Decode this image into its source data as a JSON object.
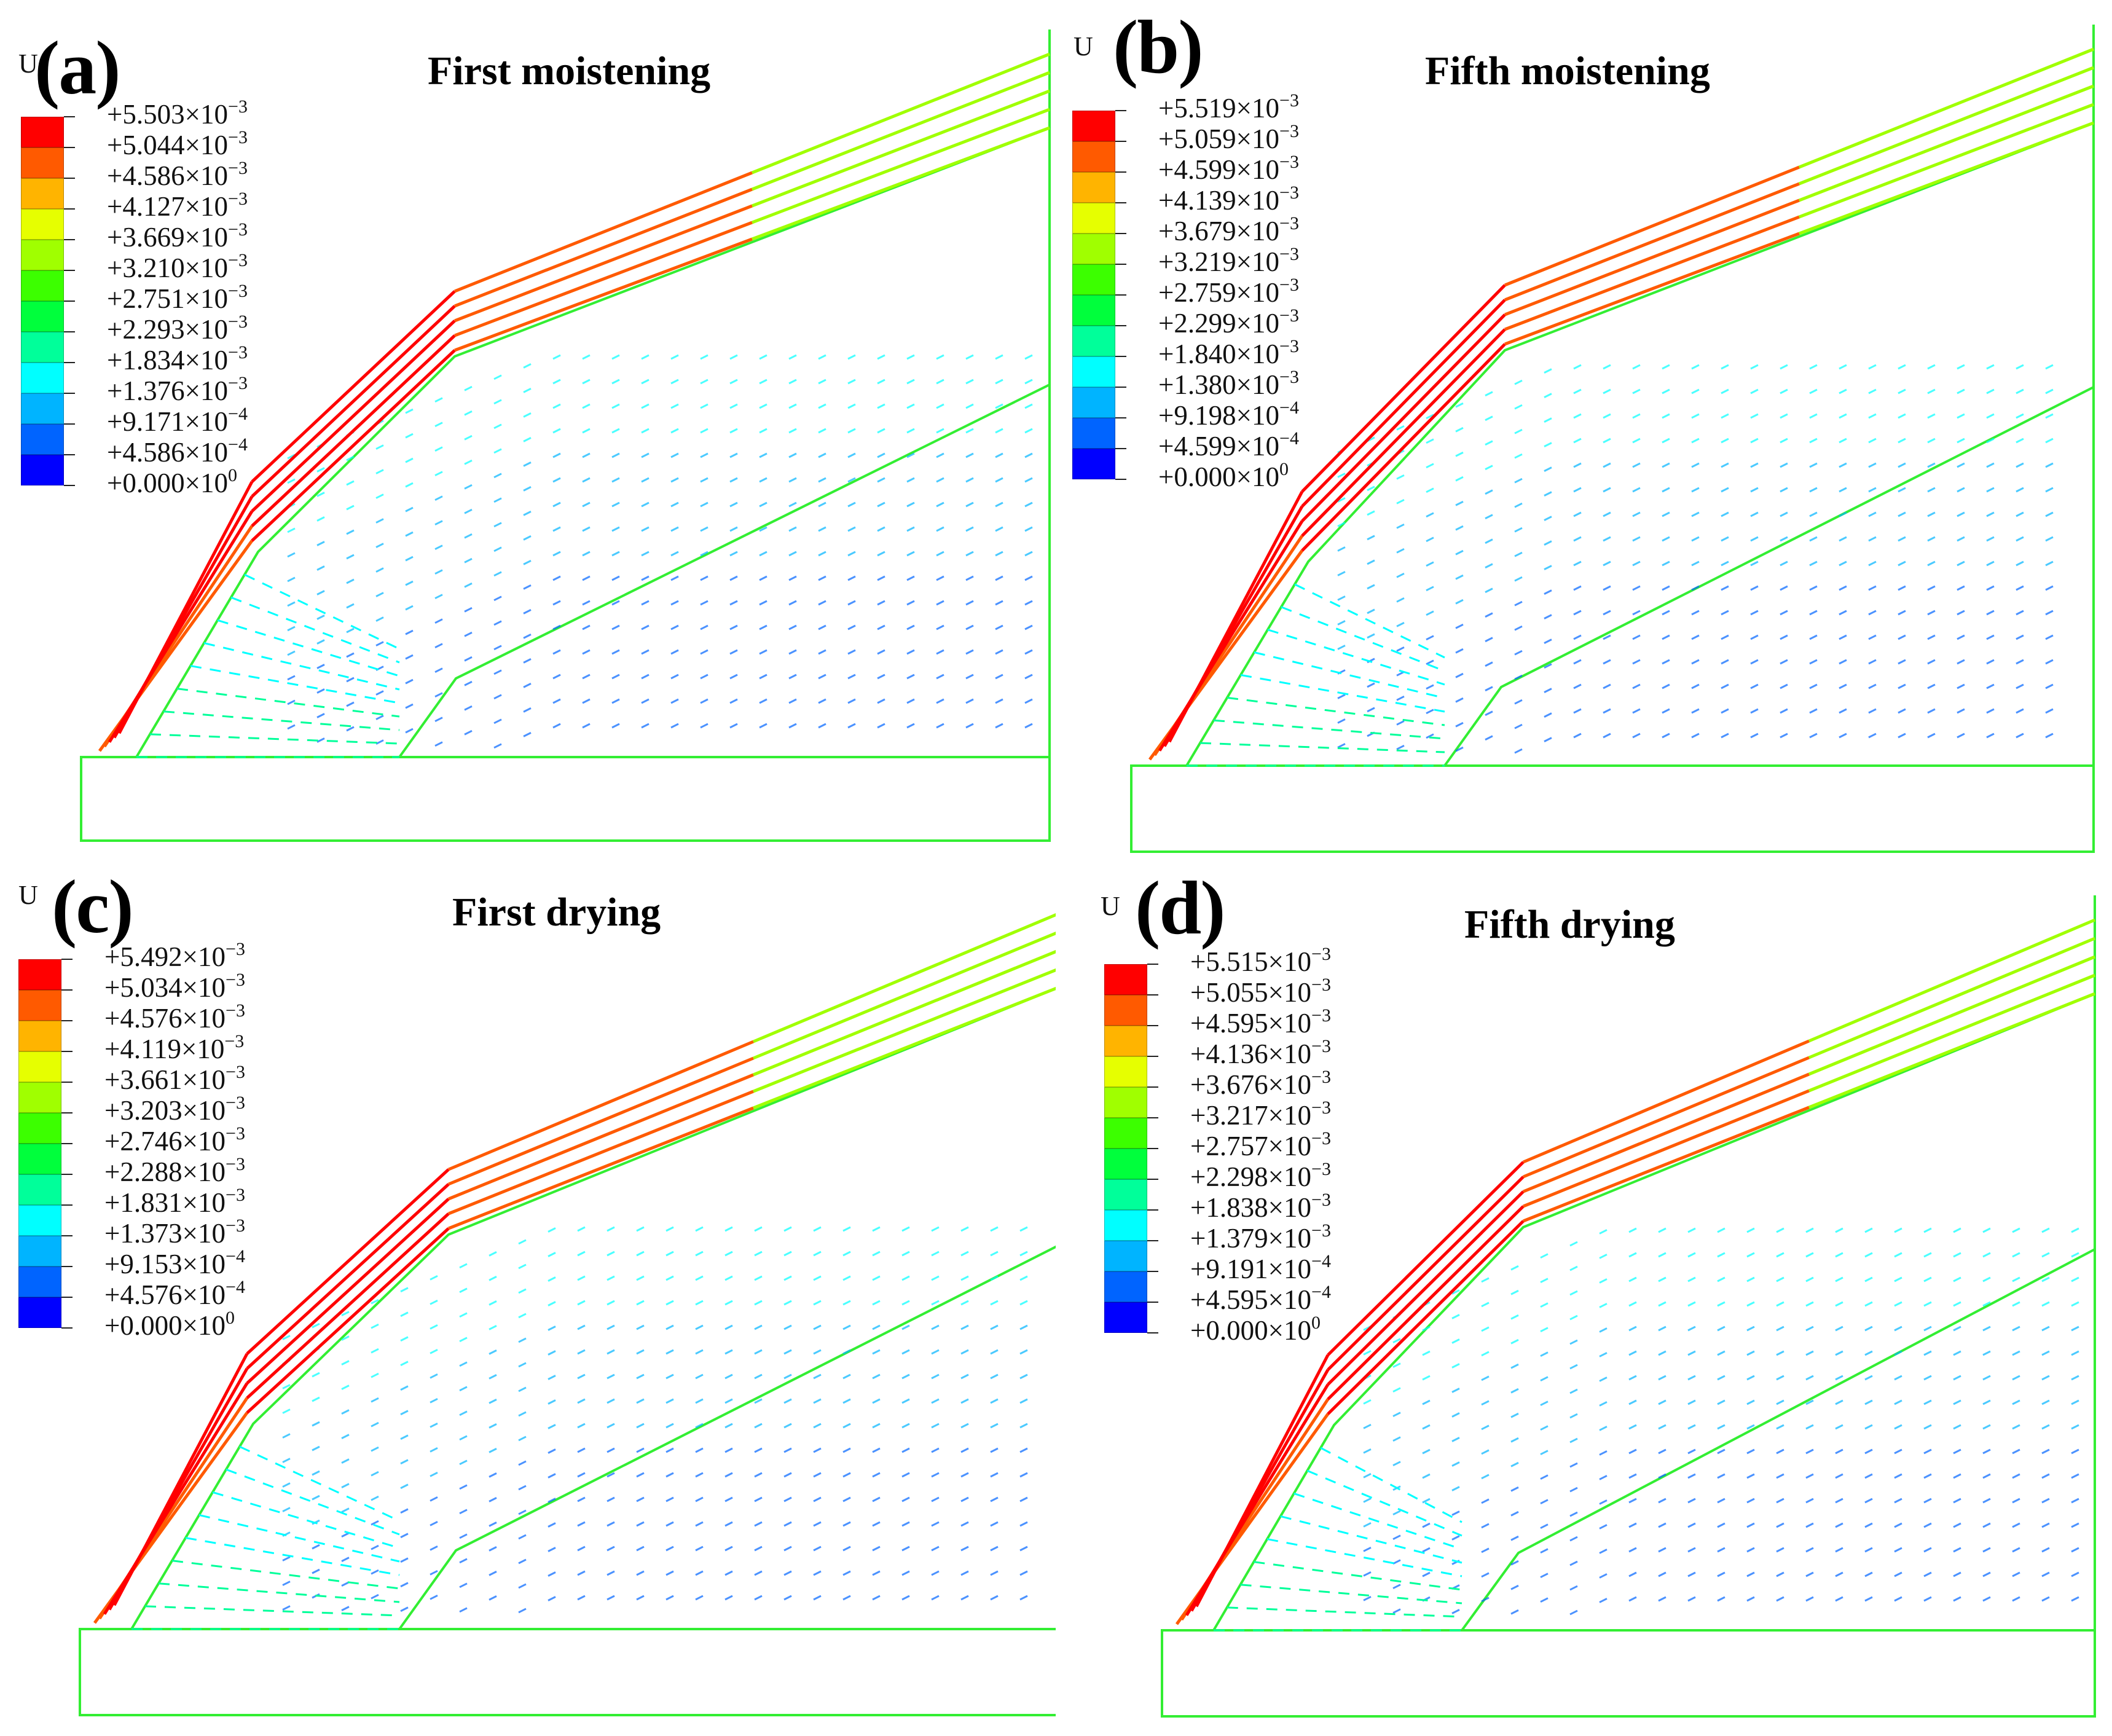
{
  "colormap": [
    "#ff0000",
    "#ff5a00",
    "#ffb400",
    "#e6ff00",
    "#a0ff00",
    "#3cff00",
    "#00ff3c",
    "#00ff9a",
    "#00ffff",
    "#00b4ff",
    "#0064ff",
    "#0000ff"
  ],
  "outline_color": "#33ee33",
  "legend_variable": "U",
  "panels": [
    {
      "letter": "(a)",
      "title": "First moistening",
      "legend_values": [
        {
          "m": "+5.503",
          "e": "−3"
        },
        {
          "m": "+5.044",
          "e": "−3"
        },
        {
          "m": "+4.586",
          "e": "−3"
        },
        {
          "m": "+4.127",
          "e": "−3"
        },
        {
          "m": "+3.669",
          "e": "−3"
        },
        {
          "m": "+3.210",
          "e": "−3"
        },
        {
          "m": "+2.751",
          "e": "−3"
        },
        {
          "m": "+2.293",
          "e": "−3"
        },
        {
          "m": "+1.834",
          "e": "−3"
        },
        {
          "m": "+1.376",
          "e": "−3"
        },
        {
          "m": "+9.171",
          "e": "−4"
        },
        {
          "m": "+4.586",
          "e": "−4"
        },
        {
          "m": "+0.000",
          "e": "0"
        }
      ]
    },
    {
      "letter": "(b)",
      "title": "Fifth moistening",
      "legend_values": [
        {
          "m": "+5.519",
          "e": "−3"
        },
        {
          "m": "+5.059",
          "e": "−3"
        },
        {
          "m": "+4.599",
          "e": "−3"
        },
        {
          "m": "+4.139",
          "e": "−3"
        },
        {
          "m": "+3.679",
          "e": "−3"
        },
        {
          "m": "+3.219",
          "e": "−3"
        },
        {
          "m": "+2.759",
          "e": "−3"
        },
        {
          "m": "+2.299",
          "e": "−3"
        },
        {
          "m": "+1.840",
          "e": "−3"
        },
        {
          "m": "+1.380",
          "e": "−3"
        },
        {
          "m": "+9.198",
          "e": "−4"
        },
        {
          "m": "+4.599",
          "e": "−4"
        },
        {
          "m": "+0.000",
          "e": "0"
        }
      ]
    },
    {
      "letter": "(c)",
      "title": "First drying",
      "legend_values": [
        {
          "m": "+5.492",
          "e": "−3"
        },
        {
          "m": "+5.034",
          "e": "−3"
        },
        {
          "m": "+4.576",
          "e": "−3"
        },
        {
          "m": "+4.119",
          "e": "−3"
        },
        {
          "m": "+3.661",
          "e": "−3"
        },
        {
          "m": "+3.203",
          "e": "−3"
        },
        {
          "m": "+2.746",
          "e": "−3"
        },
        {
          "m": "+2.288",
          "e": "−3"
        },
        {
          "m": "+1.831",
          "e": "−3"
        },
        {
          "m": "+1.373",
          "e": "−3"
        },
        {
          "m": "+9.153",
          "e": "−4"
        },
        {
          "m": "+4.576",
          "e": "−4"
        },
        {
          "m": "+0.000",
          "e": "0"
        }
      ]
    },
    {
      "letter": "(d)",
      "title": "Fifth drying",
      "legend_values": [
        {
          "m": "+5.515",
          "e": "−3"
        },
        {
          "m": "+5.055",
          "e": "−3"
        },
        {
          "m": "+4.595",
          "e": "−3"
        },
        {
          "m": "+4.136",
          "e": "−3"
        },
        {
          "m": "+3.676",
          "e": "−3"
        },
        {
          "m": "+3.217",
          "e": "−3"
        },
        {
          "m": "+2.757",
          "e": "−3"
        },
        {
          "m": "+2.298",
          "e": "−3"
        },
        {
          "m": "+1.838",
          "e": "−3"
        },
        {
          "m": "+1.379",
          "e": "−3"
        },
        {
          "m": "+9.191",
          "e": "−4"
        },
        {
          "m": "+4.595",
          "e": "−4"
        },
        {
          "m": "+0.000",
          "e": "0"
        }
      ]
    }
  ]
}
